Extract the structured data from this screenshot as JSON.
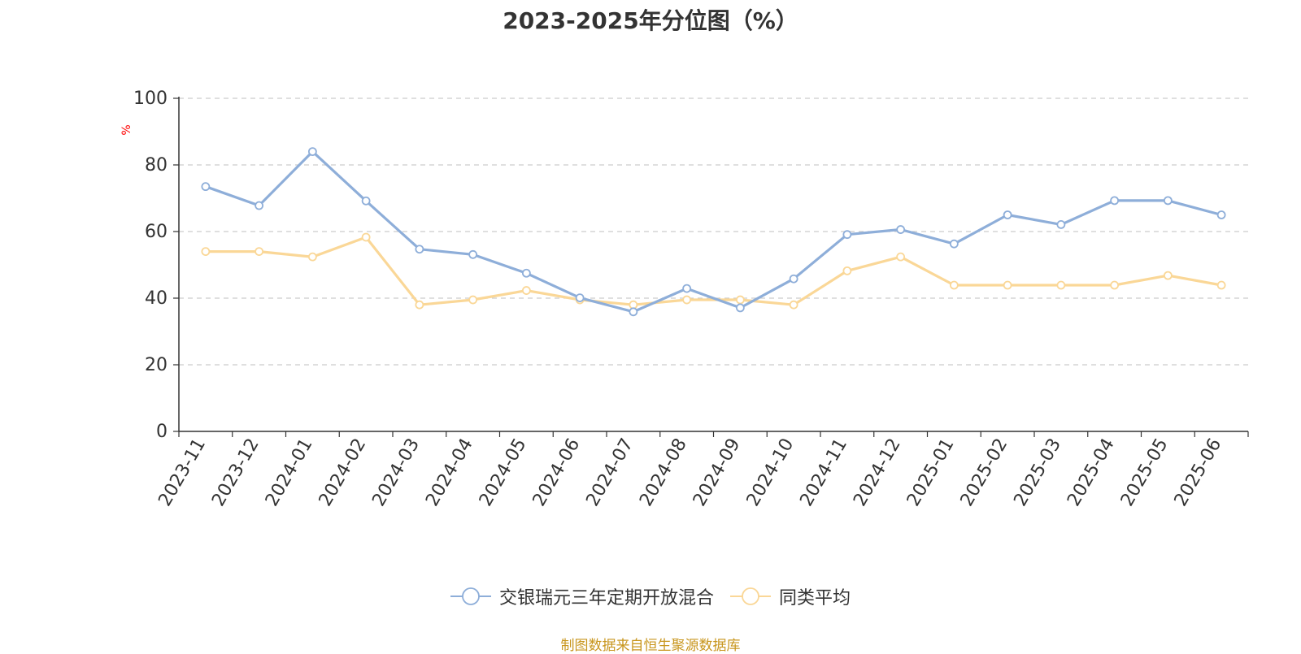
{
  "chart_data": {
    "type": "line",
    "title": "2023-2025年分位图（%）",
    "ylabel": "%",
    "ylim": [
      0,
      100
    ],
    "yticks": [
      0,
      20,
      40,
      60,
      80,
      100
    ],
    "grid": "horizontal-dashed",
    "legend_position": "bottom-center",
    "categories": [
      "2023-11",
      "2023-12",
      "2024-01",
      "2024-02",
      "2024-03",
      "2024-04",
      "2024-05",
      "2024-06",
      "2024-07",
      "2024-08",
      "2024-09",
      "2024-10",
      "2024-11",
      "2024-12",
      "2025-01",
      "2025-02",
      "2025-03",
      "2025-04",
      "2025-05",
      "2025-06"
    ],
    "series": [
      {
        "name": "交银瑞元三年定期开放混合",
        "color": "#8eaed9",
        "values": [
          73.5,
          67.8,
          84.0,
          69.2,
          54.7,
          53.1,
          47.5,
          40.1,
          35.9,
          42.9,
          37.1,
          45.8,
          59.1,
          60.6,
          56.3,
          65.0,
          62.1,
          69.3,
          69.3,
          65.0
        ]
      },
      {
        "name": "同类平均",
        "color": "#fad797",
        "values": [
          54.0,
          54.0,
          52.4,
          58.3,
          38.0,
          39.5,
          42.3,
          39.5,
          38.0,
          39.5,
          39.5,
          38.0,
          48.2,
          52.4,
          43.9,
          43.9,
          43.9,
          43.9,
          46.8,
          43.9
        ]
      }
    ]
  },
  "source": "制图数据来自恒生聚源数据库"
}
